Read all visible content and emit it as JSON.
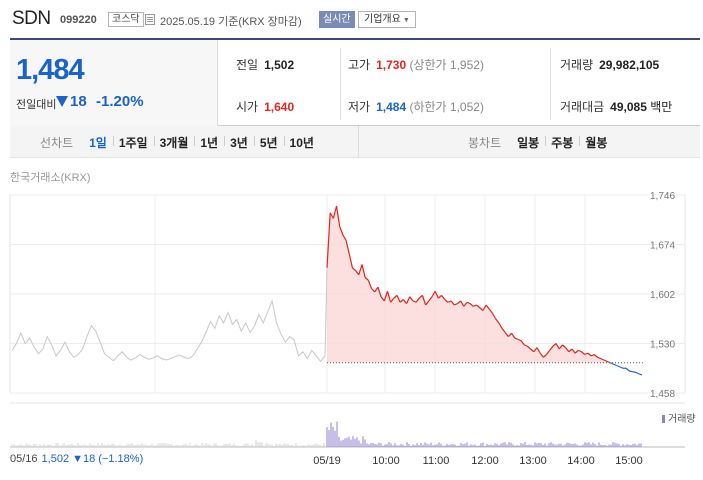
{
  "header": {
    "name": "SDN",
    "code": "099220",
    "market": "코스닥",
    "date_text": "2025.05.19  기준(KRX 장마감)",
    "realtime_btn": "실시간",
    "company_btn": "기업개요"
  },
  "quote": {
    "price": "1,484",
    "change_label": "전일대비",
    "change_value": "18",
    "change_pct": "-1.20%",
    "prev_close_label": "전일",
    "prev_close": "1,502",
    "high_label": "고가",
    "high": "1,730",
    "high_sub": "(상한가 1,952)",
    "volume_label": "거래량",
    "volume": "29,982,105",
    "open_label": "시가",
    "open": "1,640",
    "low_label": "저가",
    "low": "1,484",
    "low_sub": "(하한가 1,052)",
    "amount_label": "거래대금",
    "amount": "49,085",
    "amount_unit": "백만"
  },
  "tabs": {
    "line_title": "선차트",
    "line_tabs": [
      "1일",
      "1주일",
      "3개월",
      "1년",
      "3년",
      "5년",
      "10년"
    ],
    "line_active": "1일",
    "candle_title": "봉차트",
    "candle_tabs": [
      "일봉",
      "주봉",
      "월봉"
    ]
  },
  "exchange_label": "한국거래소(KRX)",
  "volume_legend": "거래량",
  "footer": {
    "date": "05/16",
    "info": "1,502 ▼18 (−1.18%)"
  },
  "colors": {
    "up": "#e0251b",
    "down": "#1a63c9",
    "prev_day": "#c8c8c8",
    "area_fill": "#fbdada",
    "volume": "#8f7fcc"
  },
  "chart_data": {
    "type": "line",
    "ylim": [
      1458,
      1746
    ],
    "yticks": [
      1746,
      1674,
      1602,
      1530,
      1458
    ],
    "reference_price": 1502,
    "x_labels": [
      "05/16",
      "05/19",
      "10:00",
      "11:00",
      "12:00",
      "13:00",
      "14:00",
      "15:00"
    ],
    "prev_day_series": [
      1520,
      1530,
      1545,
      1530,
      1538,
      1525,
      1515,
      1522,
      1540,
      1528,
      1512,
      1520,
      1532,
      1518,
      1510,
      1514,
      1522,
      1540,
      1556,
      1548,
      1532,
      1515,
      1510,
      1505,
      1512,
      1518,
      1510,
      1506,
      1509,
      1514,
      1510,
      1507,
      1509,
      1512,
      1508,
      1506,
      1508,
      1511,
      1513,
      1510,
      1508,
      1512,
      1522,
      1532,
      1546,
      1562,
      1552,
      1570,
      1560,
      1575,
      1558,
      1565,
      1548,
      1560,
      1546,
      1555,
      1572,
      1560,
      1576,
      1592,
      1560,
      1544,
      1532,
      1540,
      1535,
      1512,
      1518,
      1508,
      1520,
      1512,
      1504,
      1512
    ],
    "today_series": [
      1640,
      1720,
      1712,
      1730,
      1700,
      1688,
      1680,
      1660,
      1640,
      1636,
      1630,
      1645,
      1626,
      1622,
      1610,
      1605,
      1612,
      1598,
      1592,
      1606,
      1590,
      1596,
      1600,
      1590,
      1594,
      1588,
      1598,
      1592,
      1590,
      1596,
      1600,
      1586,
      1592,
      1598,
      1606,
      1596,
      1600,
      1594,
      1590,
      1592,
      1586,
      1588,
      1592,
      1584,
      1590,
      1588,
      1584,
      1586,
      1582,
      1578,
      1586,
      1580,
      1574,
      1566,
      1560,
      1552,
      1546,
      1540,
      1545,
      1538,
      1536,
      1534,
      1528,
      1526,
      1522,
      1518,
      1524,
      1516,
      1510,
      1514,
      1520,
      1526,
      1530,
      1522,
      1528,
      1524,
      1518,
      1522,
      1516,
      1520,
      1518,
      1514,
      1516,
      1512,
      1514,
      1510,
      1508,
      1506,
      1504,
      1502,
      1500,
      1498,
      1496,
      1494,
      1494,
      1490,
      1489,
      1488,
      1486,
      1484
    ],
    "volume_note": "volume bars shown in lower panel (relative)"
  }
}
